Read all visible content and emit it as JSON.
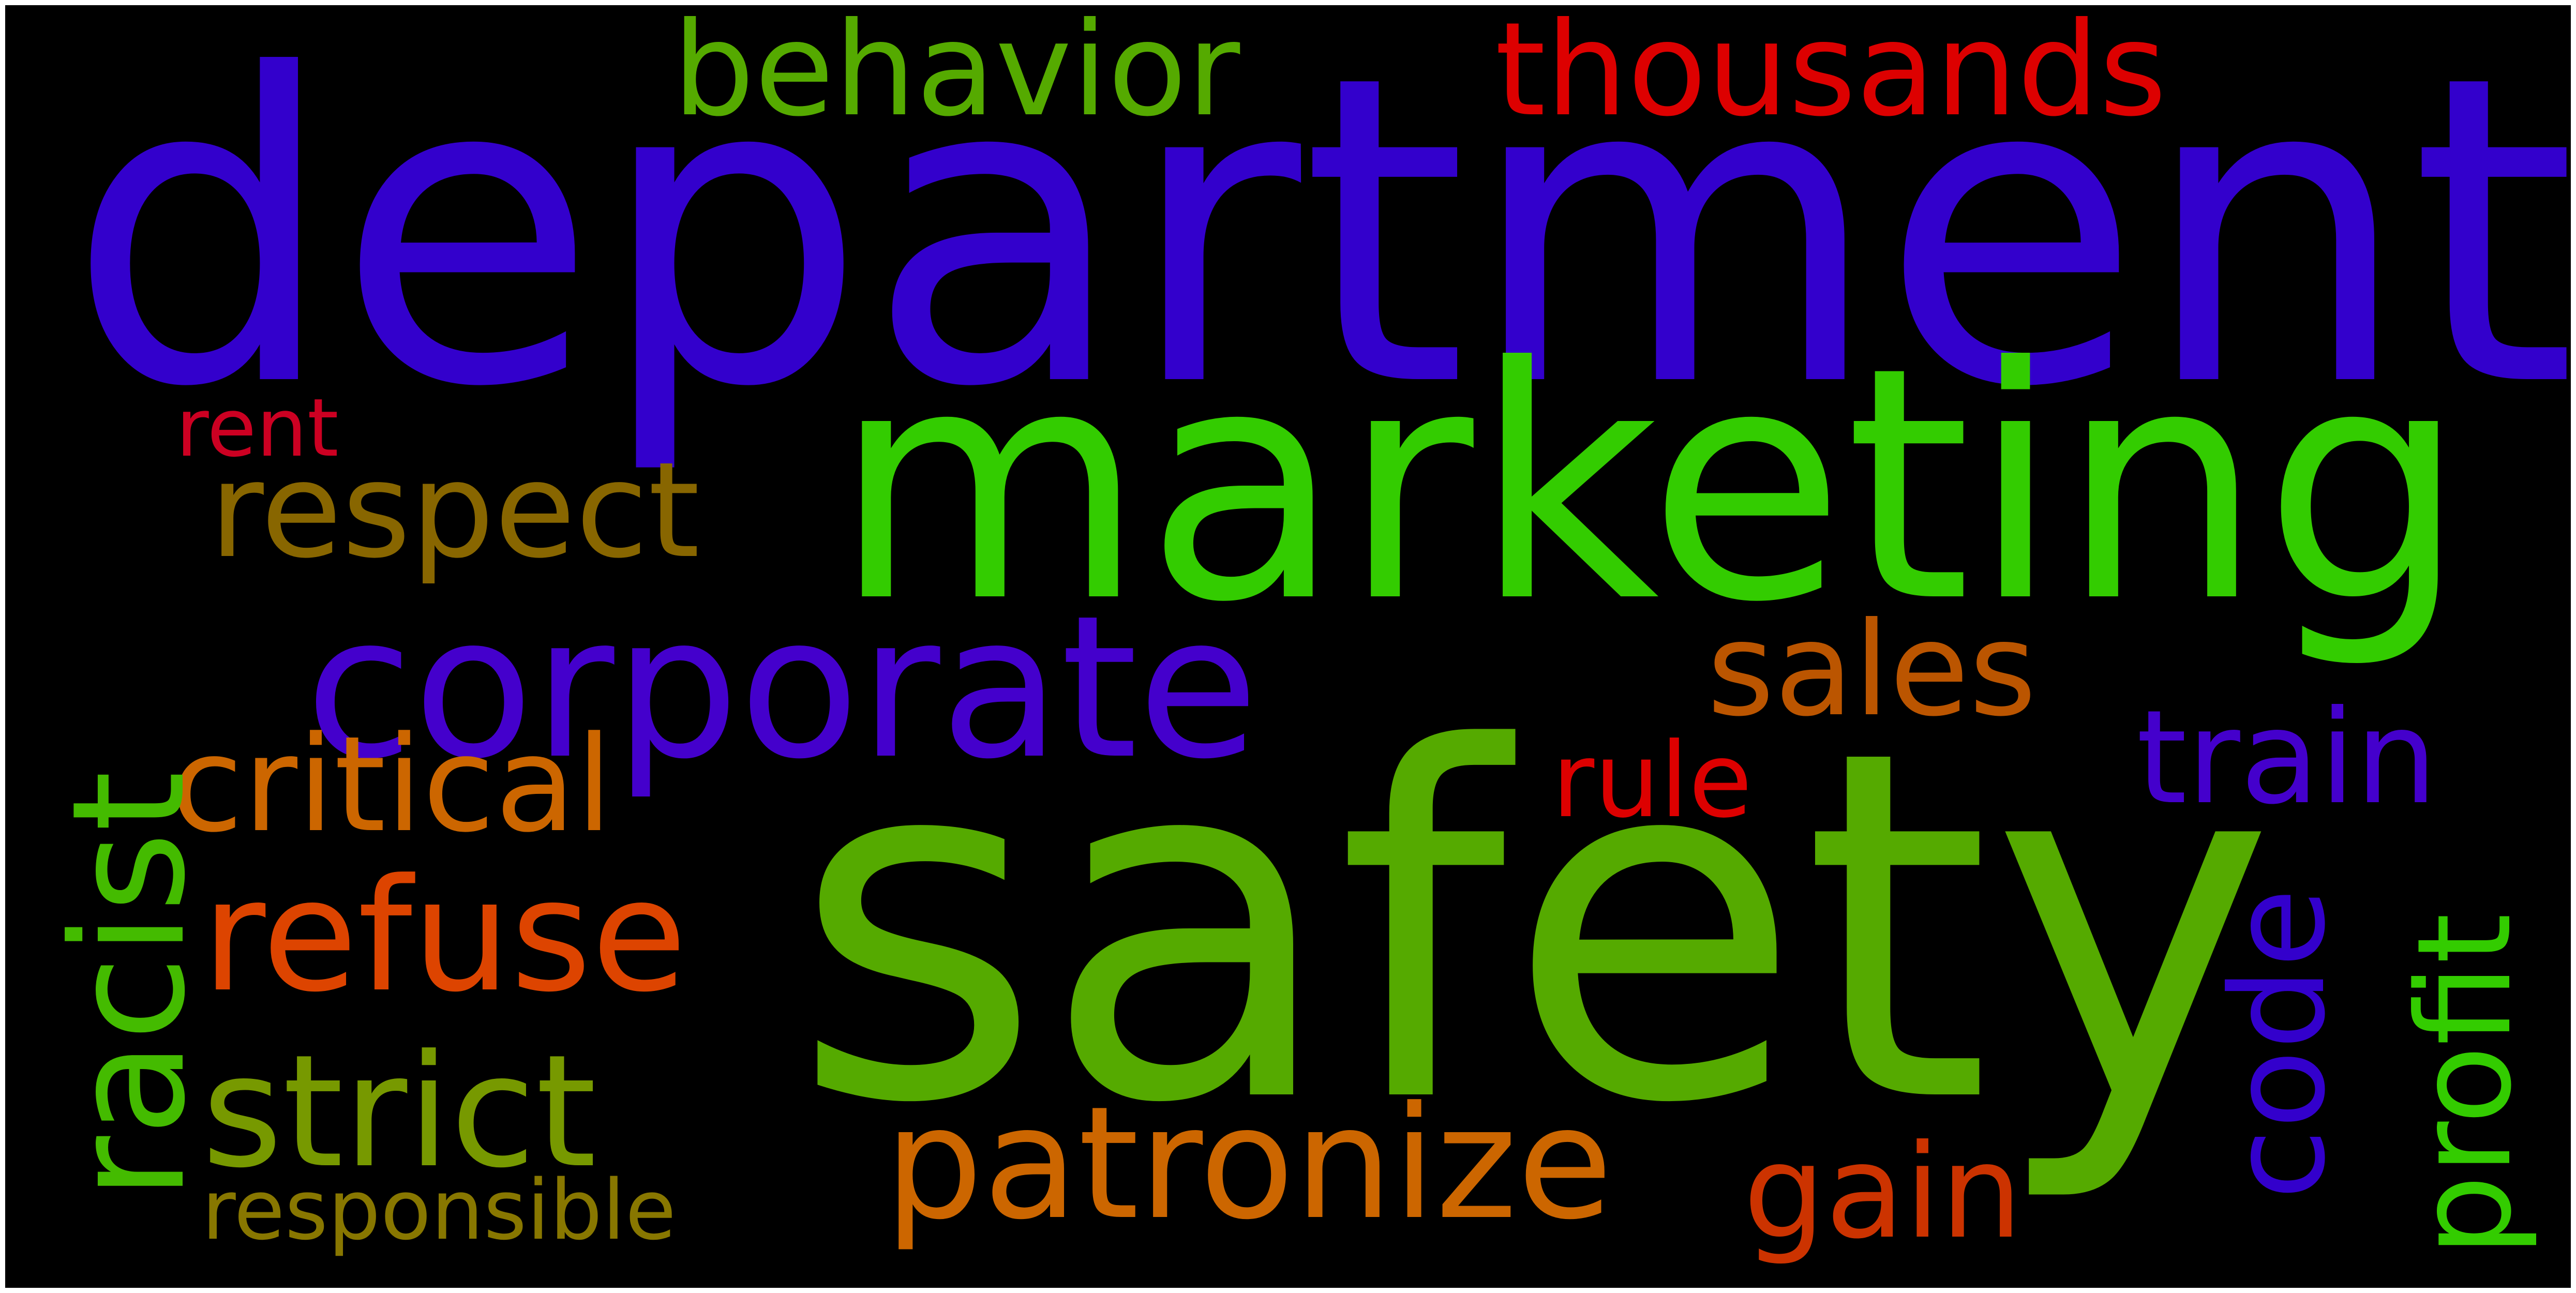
{
  "words": [
    {
      "key": "department",
      "text": "department",
      "color": "#3300cc"
    },
    {
      "key": "marketing",
      "text": "marketing",
      "color": "#33cc00"
    },
    {
      "key": "safety",
      "text": "safety",
      "color": "#55aa00"
    },
    {
      "key": "corporate",
      "text": "corporate",
      "color": "#4400cc"
    },
    {
      "key": "behavior",
      "text": "behavior",
      "color": "#55aa00"
    },
    {
      "key": "thousands",
      "text": "thousands",
      "color": "#dd0000"
    },
    {
      "key": "respect",
      "text": "respect",
      "color": "#886600"
    },
    {
      "key": "rent",
      "text": "rent",
      "color": "#cc0022"
    },
    {
      "key": "critical",
      "text": "critical",
      "color": "#cc6600"
    },
    {
      "key": "racist",
      "text": "racist",
      "color": "#44bb00"
    },
    {
      "key": "refuse",
      "text": "refuse",
      "color": "#dd4400"
    },
    {
      "key": "strict",
      "text": "strict",
      "color": "#779900"
    },
    {
      "key": "responsible",
      "text": "responsible",
      "color": "#887700"
    },
    {
      "key": "patronize",
      "text": "patronize",
      "color": "#cc6600"
    },
    {
      "key": "sales",
      "text": "sales",
      "color": "#bb5500"
    },
    {
      "key": "rule",
      "text": "rule",
      "color": "#dd0000"
    },
    {
      "key": "train",
      "text": "train",
      "color": "#4400cc"
    },
    {
      "key": "gain",
      "text": "gain",
      "color": "#cc3300"
    },
    {
      "key": "code",
      "text": "code",
      "color": "#3300cc"
    },
    {
      "key": "profit",
      "text": "profit",
      "color": "#33cc00"
    }
  ]
}
